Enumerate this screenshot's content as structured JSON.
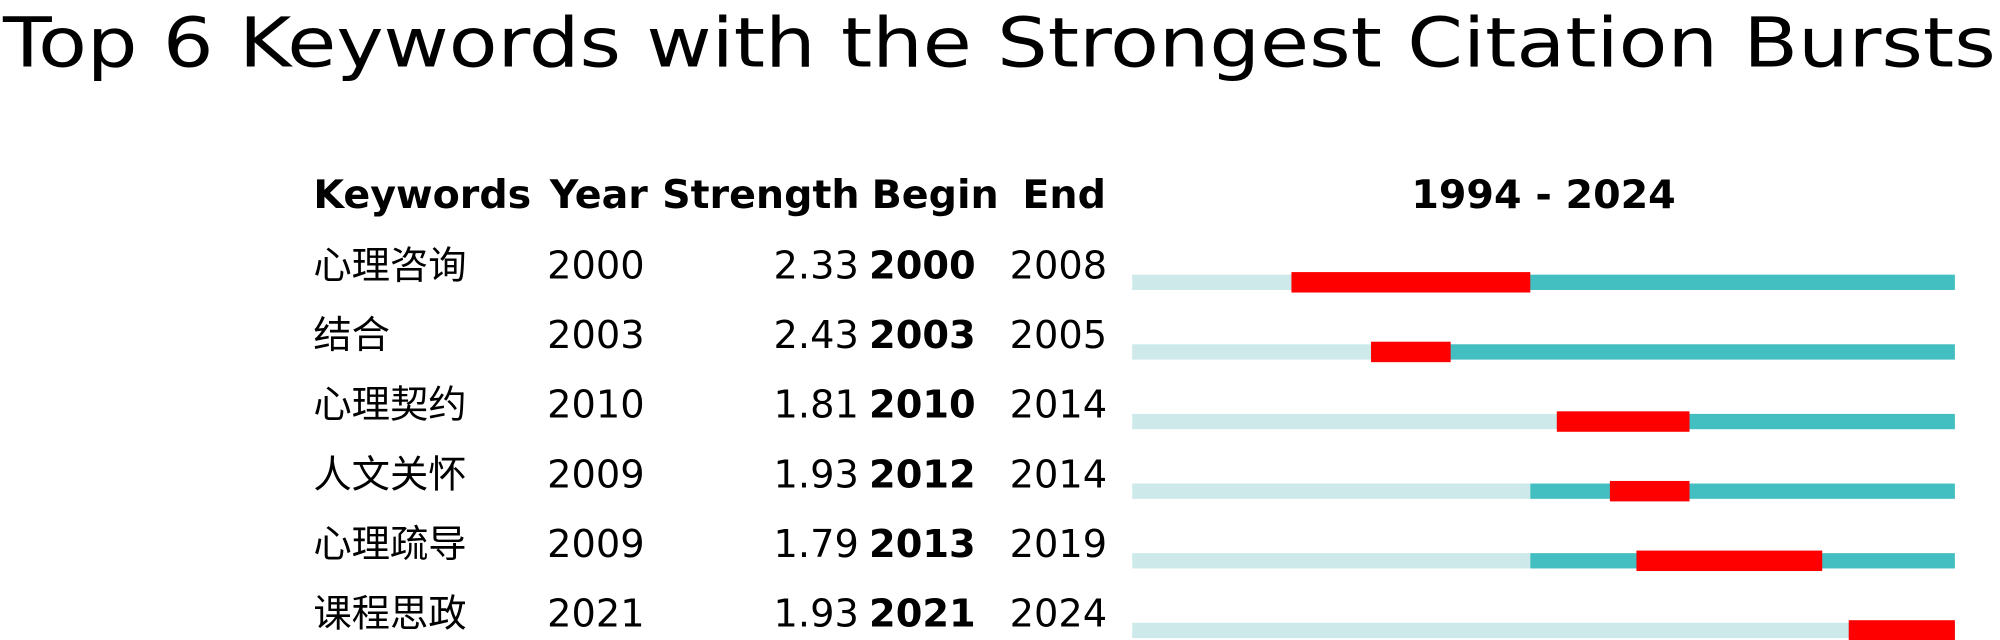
{
  "chart_data": {
    "type": "burst",
    "title": "Top 6 Keywords with the Strongest Citation Bursts",
    "headers": [
      "Keywords",
      "Year",
      "Strength",
      "Begin",
      "End"
    ],
    "range_label": "1994 - 2024",
    "xlim": [
      1994,
      2024
    ],
    "colors": {
      "before": "#cde9ea",
      "after": "#43bfc2",
      "burst": "#ff0000"
    },
    "rows": [
      {
        "keyword": "心理咨询",
        "year": 2000,
        "strength": 2.33,
        "begin": 2000,
        "end": 2008
      },
      {
        "keyword": "结合",
        "year": 2003,
        "strength": 2.43,
        "begin": 2003,
        "end": 2005
      },
      {
        "keyword": "心理契约",
        "year": 2010,
        "strength": 1.81,
        "begin": 2010,
        "end": 2014
      },
      {
        "keyword": "人文关怀",
        "year": 2009,
        "strength": 1.93,
        "begin": 2012,
        "end": 2014
      },
      {
        "keyword": "心理疏导",
        "year": 2009,
        "strength": 1.79,
        "begin": 2013,
        "end": 2019
      },
      {
        "keyword": "课程思政",
        "year": 2021,
        "strength": 1.93,
        "begin": 2021,
        "end": 2024
      }
    ]
  }
}
